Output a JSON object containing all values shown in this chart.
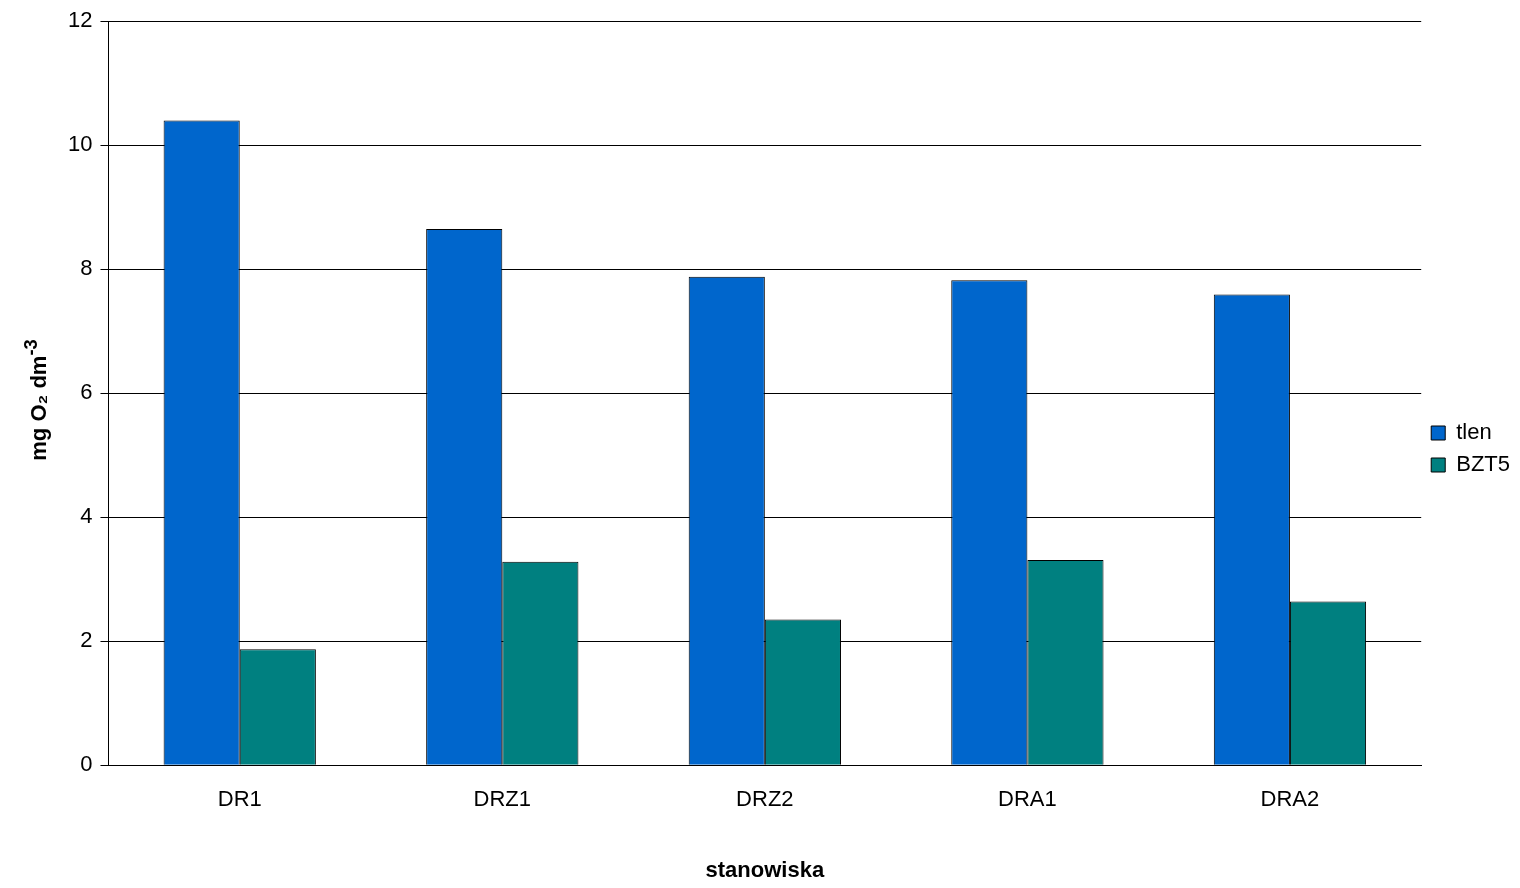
{
  "chart_data": {
    "type": "bar",
    "xlabel": "stanowiska",
    "ylabel": "mg O₂ dm$^{-3}$",
    "categories": [
      "DR1",
      "DRZ1",
      "DRZ2",
      "DRA1",
      "DRA2"
    ],
    "series": [
      {
        "name": "tlen",
        "color": "#0066cc",
        "values": [
          10.4,
          8.65,
          7.88,
          7.82,
          7.59
        ]
      },
      {
        "name": "BZT5",
        "color": "#008080",
        "values": [
          1.87,
          3.28,
          2.35,
          3.31,
          2.64
        ]
      }
    ],
    "ylim": [
      0,
      12
    ],
    "yticks": [
      0,
      2,
      4,
      6,
      8,
      10,
      12
    ],
    "grid": "y",
    "legend": "right"
  }
}
